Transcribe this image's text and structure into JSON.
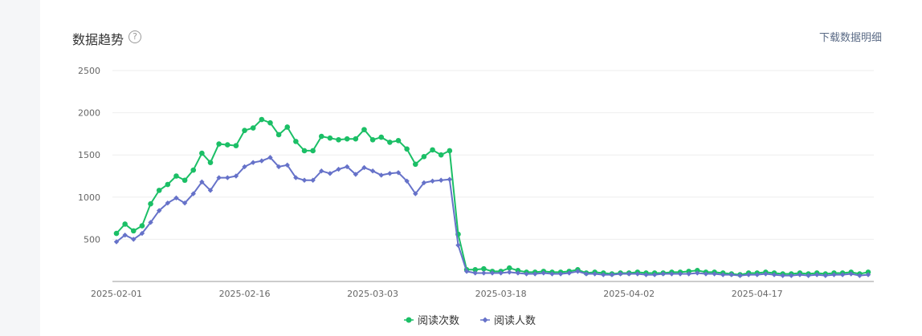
{
  "card": {
    "title": "数据趋势",
    "help_icon": "question-circle-icon",
    "download_link": "下载数据明细"
  },
  "chart_data": {
    "type": "line",
    "title": "",
    "xlabel": "",
    "ylabel": "",
    "ylim": [
      0,
      2500
    ],
    "yticks": [
      500,
      1000,
      1500,
      2000,
      2500
    ],
    "x_tick_labels": [
      "2025-02-01",
      "2025-02-16",
      "2025-03-03",
      "2025-03-18",
      "2025-04-02",
      "2025-04-17"
    ],
    "x_tick_indices": [
      0,
      15,
      30,
      45,
      60,
      75
    ],
    "x_count": 89,
    "grid": true,
    "legend_position": "bottom-center",
    "series": [
      {
        "name": "阅读次数",
        "color": "#1bbf66",
        "marker": "circle",
        "values": [
          570,
          680,
          600,
          660,
          920,
          1080,
          1150,
          1250,
          1200,
          1320,
          1520,
          1410,
          1630,
          1620,
          1610,
          1790,
          1820,
          1920,
          1880,
          1740,
          1830,
          1660,
          1550,
          1550,
          1720,
          1700,
          1680,
          1690,
          1690,
          1800,
          1680,
          1710,
          1650,
          1670,
          1570,
          1390,
          1480,
          1560,
          1500,
          1550,
          560,
          140,
          140,
          150,
          120,
          120,
          160,
          130,
          110,
          110,
          120,
          110,
          110,
          120,
          140,
          100,
          110,
          100,
          90,
          100,
          100,
          110,
          100,
          100,
          100,
          110,
          110,
          120,
          130,
          110,
          110,
          100,
          90,
          80,
          100,
          100,
          110,
          100,
          90,
          90,
          100,
          90,
          100,
          90,
          100,
          100,
          110,
          90,
          110
        ]
      },
      {
        "name": "阅读人数",
        "color": "#6672c9",
        "marker": "diamond",
        "values": [
          470,
          550,
          500,
          570,
          700,
          840,
          930,
          990,
          930,
          1040,
          1180,
          1080,
          1230,
          1230,
          1250,
          1360,
          1410,
          1430,
          1470,
          1360,
          1380,
          1230,
          1200,
          1200,
          1310,
          1280,
          1330,
          1360,
          1270,
          1350,
          1310,
          1260,
          1280,
          1290,
          1190,
          1040,
          1170,
          1190,
          1200,
          1210,
          430,
          120,
          100,
          100,
          100,
          100,
          110,
          100,
          90,
          90,
          100,
          90,
          90,
          100,
          120,
          90,
          90,
          80,
          80,
          90,
          90,
          90,
          80,
          80,
          90,
          90,
          90,
          90,
          100,
          90,
          90,
          80,
          80,
          70,
          80,
          80,
          90,
          80,
          70,
          70,
          80,
          70,
          80,
          70,
          80,
          80,
          90,
          70,
          80
        ]
      }
    ]
  }
}
